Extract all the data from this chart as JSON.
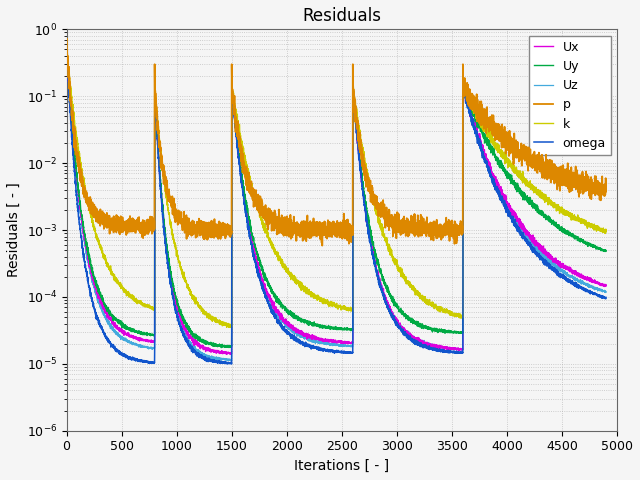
{
  "title": "Residuals",
  "xlabel": "Iterations [ - ]",
  "ylabel": "Residuals [ - ]",
  "xlim": [
    0,
    5000
  ],
  "ylim_log": [
    -6,
    0
  ],
  "legend": [
    "Ux",
    "Uy",
    "Uz",
    "p",
    "k",
    "omega"
  ],
  "colors": {
    "Ux": "#dd00dd",
    "Uy": "#00aa44",
    "Uz": "#44aadd",
    "p": "#dd8800",
    "k": "#cccc00",
    "omega": "#1155cc"
  },
  "background_color": "#f5f5f5",
  "grid_color": "#aaaaaa",
  "title_fontsize": 12,
  "label_fontsize": 10,
  "legend_fontsize": 9
}
